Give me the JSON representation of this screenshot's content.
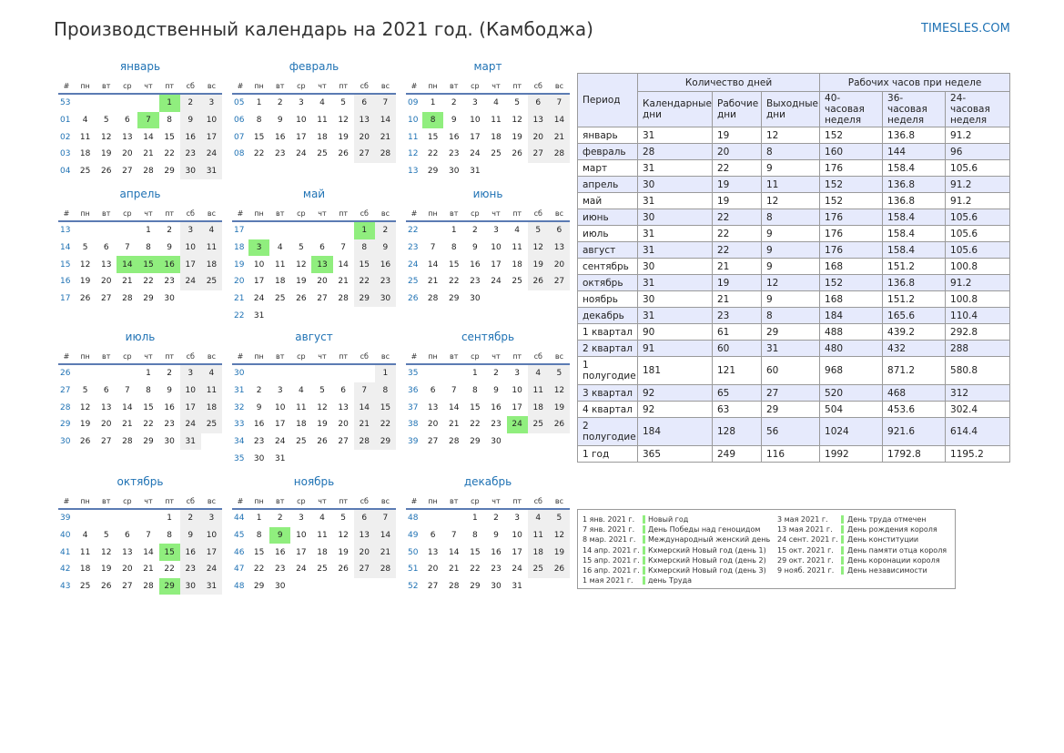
{
  "title": "Производственный календарь на 2021 год. (Камбоджа)",
  "site": "TIMESLES.COM",
  "colors": {
    "accent": "#1f72b4",
    "holiday": "#90ee7e",
    "weekend": "#efefef",
    "stats_alt": "#e6eafc"
  },
  "weekday_header": [
    "#",
    "пн",
    "вт",
    "ср",
    "чт",
    "пт",
    "сб",
    "вс"
  ],
  "months": [
    {
      "name": "январь",
      "start": 4,
      "days": 31,
      "week_start": 53,
      "holidays": [
        1,
        7
      ]
    },
    {
      "name": "февраль",
      "start": 0,
      "days": 28,
      "week_start": 5,
      "holidays": []
    },
    {
      "name": "март",
      "start": 0,
      "days": 31,
      "week_start": 9,
      "holidays": [
        8
      ]
    },
    {
      "name": "апрель",
      "start": 3,
      "days": 30,
      "week_start": 13,
      "holidays": [
        14,
        15,
        16
      ]
    },
    {
      "name": "май",
      "start": 5,
      "days": 31,
      "week_start": 17,
      "holidays": [
        1,
        3,
        13
      ]
    },
    {
      "name": "июнь",
      "start": 1,
      "days": 30,
      "week_start": 22,
      "holidays": []
    },
    {
      "name": "июль",
      "start": 3,
      "days": 31,
      "week_start": 26,
      "holidays": []
    },
    {
      "name": "август",
      "start": 6,
      "days": 31,
      "week_start": 30,
      "holidays": []
    },
    {
      "name": "сентябрь",
      "start": 2,
      "days": 30,
      "week_start": 35,
      "holidays": [
        24
      ]
    },
    {
      "name": "октябрь",
      "start": 4,
      "days": 31,
      "week_start": 39,
      "holidays": [
        15,
        29
      ]
    },
    {
      "name": "ноябрь",
      "start": 0,
      "days": 30,
      "week_start": 44,
      "holidays": [
        9
      ]
    },
    {
      "name": "декабрь",
      "start": 2,
      "days": 31,
      "week_start": 48,
      "holidays": []
    }
  ],
  "stats": {
    "period_label": "Период",
    "days_group": "Количество дней",
    "hours_group": "Рабочих часов при неделе",
    "cols": [
      "Календарные дни",
      "Рабочие дни",
      "Выходные дни",
      "40-часовая неделя",
      "36-часовая неделя",
      "24-часовая неделя"
    ],
    "rows": [
      [
        "январь",
        "31",
        "19",
        "12",
        "152",
        "136.8",
        "91.2"
      ],
      [
        "февраль",
        "28",
        "20",
        "8",
        "160",
        "144",
        "96"
      ],
      [
        "март",
        "31",
        "22",
        "9",
        "176",
        "158.4",
        "105.6"
      ],
      [
        "апрель",
        "30",
        "19",
        "11",
        "152",
        "136.8",
        "91.2"
      ],
      [
        "май",
        "31",
        "19",
        "12",
        "152",
        "136.8",
        "91.2"
      ],
      [
        "июнь",
        "30",
        "22",
        "8",
        "176",
        "158.4",
        "105.6"
      ],
      [
        "июль",
        "31",
        "22",
        "9",
        "176",
        "158.4",
        "105.6"
      ],
      [
        "август",
        "31",
        "22",
        "9",
        "176",
        "158.4",
        "105.6"
      ],
      [
        "сентябрь",
        "30",
        "21",
        "9",
        "168",
        "151.2",
        "100.8"
      ],
      [
        "октябрь",
        "31",
        "19",
        "12",
        "152",
        "136.8",
        "91.2"
      ],
      [
        "ноябрь",
        "30",
        "21",
        "9",
        "168",
        "151.2",
        "100.8"
      ],
      [
        "декабрь",
        "31",
        "23",
        "8",
        "184",
        "165.6",
        "110.4"
      ],
      [
        "1 квартал",
        "90",
        "61",
        "29",
        "488",
        "439.2",
        "292.8"
      ],
      [
        "2 квартал",
        "91",
        "60",
        "31",
        "480",
        "432",
        "288"
      ],
      [
        "1 полугодие",
        "181",
        "121",
        "60",
        "968",
        "871.2",
        "580.8"
      ],
      [
        "3 квартал",
        "92",
        "65",
        "27",
        "520",
        "468",
        "312"
      ],
      [
        "4 квартал",
        "92",
        "63",
        "29",
        "504",
        "453.6",
        "302.4"
      ],
      [
        "2 полугодие",
        "184",
        "128",
        "56",
        "1024",
        "921.6",
        "614.4"
      ],
      [
        "1 год",
        "365",
        "249",
        "116",
        "1992",
        "1792.8",
        "1195.2"
      ]
    ]
  },
  "legend": {
    "left": [
      {
        "date": "1 янв. 2021 г.",
        "name": "Новый год"
      },
      {
        "date": "7 янв. 2021 г.",
        "name": "День Победы над геноцидом"
      },
      {
        "date": "8 мар. 2021 г.",
        "name": "Международный женский день"
      },
      {
        "date": "14 апр. 2021 г.",
        "name": "Кхмерский Новый год (день 1)"
      },
      {
        "date": "15 апр. 2021 г.",
        "name": "Кхмерский Новый год (день 2)"
      },
      {
        "date": "16 апр. 2021 г.",
        "name": "Кхмерский Новый год (день 3)"
      },
      {
        "date": "1 мая 2021 г.",
        "name": "день Труда"
      }
    ],
    "right": [
      {
        "date": "3 мая 2021 г.",
        "name": "День труда отмечен"
      },
      {
        "date": "13 мая 2021 г.",
        "name": "День рождения короля"
      },
      {
        "date": "24 сент. 2021 г.",
        "name": "День конституции"
      },
      {
        "date": "15 окт. 2021 г.",
        "name": "День памяти отца короля"
      },
      {
        "date": "29 окт. 2021 г.",
        "name": "День коронации короля"
      },
      {
        "date": "9 нояб. 2021 г.",
        "name": "День независимости"
      }
    ]
  }
}
